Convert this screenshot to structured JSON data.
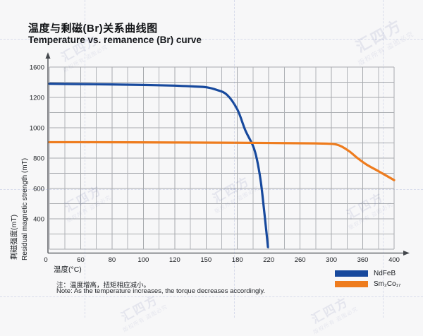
{
  "watermark": {
    "brand": "汇四方",
    "slogan": "版权所有 盗图必究"
  },
  "chart_data": {
    "type": "line",
    "title_zh": "温度与剩磁(Br)关系曲线图",
    "title_en": "Temperature vs. remanence (Br) curve",
    "xlabel": "温度(°C)",
    "ylabel_zh": "剩磁强度(mT)",
    "ylabel_en": "Residual magnetic strength (mT)",
    "x_tick_labels": [
      0,
      60,
      80,
      100,
      120,
      150,
      180,
      220,
      260,
      300,
      360,
      400
    ],
    "y_tick_labels": [
      400,
      600,
      800,
      1000,
      1200,
      1600
    ],
    "grid": true,
    "tick_spacing": "uniform (values printed non-linearly as shown)",
    "legend_position": "bottom-right",
    "series": [
      {
        "name": "NdFeB",
        "color": "#17499d",
        "points": [
          [
            0,
            1380
          ],
          [
            40,
            1377
          ],
          [
            80,
            1371
          ],
          [
            100,
            1364
          ],
          [
            120,
            1355
          ],
          [
            140,
            1343
          ],
          [
            150,
            1334
          ],
          [
            160,
            1300
          ],
          [
            170,
            1235
          ],
          [
            180,
            1120
          ],
          [
            190,
            985
          ],
          [
            200,
            880
          ],
          [
            205,
            790
          ],
          [
            210,
            640
          ],
          [
            214,
            460
          ],
          [
            217,
            250
          ],
          [
            219,
            70
          ]
        ]
      },
      {
        "name": "Sm₂Co₁₇",
        "color": "#ee7c1e",
        "points": [
          [
            0,
            905
          ],
          [
            60,
            905
          ],
          [
            120,
            903
          ],
          [
            180,
            901
          ],
          [
            240,
            899
          ],
          [
            280,
            897
          ],
          [
            300,
            894
          ],
          [
            310,
            889
          ],
          [
            320,
            876
          ],
          [
            335,
            843
          ],
          [
            350,
            800
          ],
          [
            365,
            757
          ],
          [
            380,
            714
          ],
          [
            400,
            655
          ]
        ]
      }
    ],
    "notes": {
      "zh": "注：温度增高，扭矩相应减小。",
      "en": "Note: As the temperature increases, the torque decreases accordingly."
    }
  }
}
